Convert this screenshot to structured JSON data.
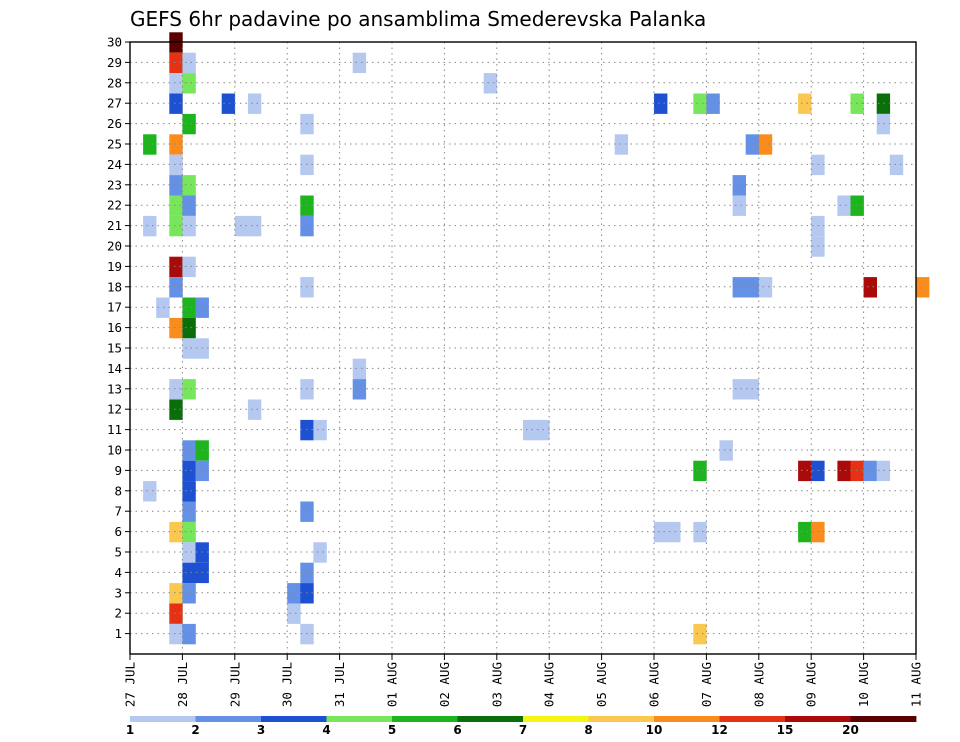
{
  "chart_data": {
    "type": "heatmap",
    "title": "GEFS 6hr padavine po ansamblima Smederevska Palanka",
    "xlabel": "",
    "ylabel": "",
    "x_ticks": [
      "27 JUL",
      "28 JUL",
      "29 JUL",
      "30 JUL",
      "31 JUL",
      "01 AUG",
      "02 AUG",
      "03 AUG",
      "04 AUG",
      "05 AUG",
      "06 AUG",
      "07 AUG",
      "08 AUG",
      "09 AUG",
      "10 AUG",
      "11 AUG"
    ],
    "x_range": [
      "27 JUL 00Z",
      "11 AUG 00Z"
    ],
    "x_step_hours": 6,
    "y_ticks": [
      "1",
      "2",
      "3",
      "4",
      "5",
      "6",
      "7",
      "8",
      "9",
      "10",
      "11",
      "12",
      "13",
      "14",
      "15",
      "16",
      "17",
      "18",
      "19",
      "20",
      "21",
      "22",
      "23",
      "24",
      "25",
      "26",
      "27",
      "28",
      "29",
      "30"
    ],
    "y_range": [
      1,
      30
    ],
    "grid": true,
    "grid_style": "dotted",
    "colorbar": {
      "labels": [
        "1",
        "2",
        "3",
        "4",
        "5",
        "6",
        "7",
        "8",
        "10",
        "12",
        "15",
        "20"
      ],
      "colors": [
        "#b4c8f0",
        "#6490e6",
        "#1e50d2",
        "#78e65a",
        "#1eb41e",
        "#0a6e0a",
        "#f5f514",
        "#fac850",
        "#fa8c1e",
        "#e63214",
        "#aa0a0a",
        "#5a0000"
      ]
    },
    "cells": [
      {
        "member": 30,
        "step": [
          0,
          18
        ],
        "value": 20
      },
      {
        "member": 29,
        "step": [
          4,
          6
        ],
        "value": 1
      },
      {
        "member": 29,
        "step": [
          0,
          18
        ],
        "value": 12
      },
      {
        "member": 29,
        "step": [
          0,
          24
        ],
        "value": 1
      },
      {
        "member": 28,
        "step": [
          6,
          18
        ],
        "value": 1
      },
      {
        "member": 28,
        "step": [
          0,
          18
        ],
        "value": 1
      },
      {
        "member": 28,
        "step": [
          0,
          24
        ],
        "value": 4
      },
      {
        "member": 27,
        "step": [
          0,
          18
        ],
        "value": 3
      },
      {
        "member": 27,
        "step": [
          1,
          18
        ],
        "value": 3
      },
      {
        "member": 27,
        "step": [
          2,
          6
        ],
        "value": 1
      },
      {
        "member": 27,
        "step": [
          10,
          0
        ],
        "value": 3
      },
      {
        "member": 27,
        "step": [
          10,
          18
        ],
        "value": 4
      },
      {
        "member": 27,
        "step": [
          11,
          0
        ],
        "value": 2
      },
      {
        "member": 27,
        "step": [
          12,
          18
        ],
        "value": 8
      },
      {
        "member": 27,
        "step": [
          13,
          18
        ],
        "value": 4
      },
      {
        "member": 27,
        "step": [
          14,
          6
        ],
        "value": 6
      },
      {
        "member": 26,
        "step": [
          3,
          6
        ],
        "value": 1
      },
      {
        "member": 26,
        "step": [
          0,
          24
        ],
        "value": 5
      },
      {
        "member": 26,
        "step": [
          14,
          6
        ],
        "value": 1
      },
      {
        "member": 25,
        "step": [
          0,
          6
        ],
        "value": 5
      },
      {
        "member": 25,
        "step": [
          0,
          18
        ],
        "value": 10
      },
      {
        "member": 25,
        "step": [
          9,
          6
        ],
        "value": 1
      },
      {
        "member": 25,
        "step": [
          11,
          18
        ],
        "value": 2
      },
      {
        "member": 25,
        "step": [
          12,
          0
        ],
        "value": 10
      },
      {
        "member": 24,
        "step": [
          3,
          6
        ],
        "value": 1
      },
      {
        "member": 24,
        "step": [
          0,
          18
        ],
        "value": 1
      },
      {
        "member": 24,
        "step": [
          13,
          0
        ],
        "value": 1
      },
      {
        "member": 24,
        "step": [
          14,
          12
        ],
        "value": 1
      },
      {
        "member": 23,
        "step": [
          0,
          18
        ],
        "value": 2
      },
      {
        "member": 23,
        "step": [
          0,
          24
        ],
        "value": 4
      },
      {
        "member": 23,
        "step": [
          11,
          12
        ],
        "value": 2
      },
      {
        "member": 22,
        "step": [
          3,
          6
        ],
        "value": 5
      },
      {
        "member": 22,
        "step": [
          0,
          18
        ],
        "value": 4
      },
      {
        "member": 22,
        "step": [
          0,
          24
        ],
        "value": 2
      },
      {
        "member": 22,
        "step": [
          11,
          12
        ],
        "value": 1
      },
      {
        "member": 22,
        "step": [
          13,
          12
        ],
        "value": 1
      },
      {
        "member": 22,
        "step": [
          13,
          18
        ],
        "value": 5
      },
      {
        "member": 21,
        "step": [
          0,
          6
        ],
        "value": 1
      },
      {
        "member": 21,
        "step": [
          2,
          0
        ],
        "value": 1
      },
      {
        "member": 21,
        "step": [
          2,
          6
        ],
        "value": 1
      },
      {
        "member": 21,
        "step": [
          3,
          6
        ],
        "value": 2
      },
      {
        "member": 21,
        "step": [
          0,
          18
        ],
        "value": 4
      },
      {
        "member": 21,
        "step": [
          0,
          24
        ],
        "value": 1
      },
      {
        "member": 21,
        "step": [
          13,
          0
        ],
        "value": 1
      },
      {
        "member": 20,
        "step": [
          13,
          0
        ],
        "value": 1
      },
      {
        "member": 19,
        "step": [
          0,
          18
        ],
        "value": 15
      },
      {
        "member": 19,
        "step": [
          0,
          24
        ],
        "value": 1
      },
      {
        "member": 18,
        "step": [
          3,
          6
        ],
        "value": 1
      },
      {
        "member": 18,
        "step": [
          0,
          18
        ],
        "value": 2
      },
      {
        "member": 18,
        "step": [
          11,
          12
        ],
        "value": 2
      },
      {
        "member": 18,
        "step": [
          11,
          18
        ],
        "value": 2
      },
      {
        "member": 18,
        "step": [
          12,
          0
        ],
        "value": 1
      },
      {
        "member": 18,
        "step": [
          14,
          0
        ],
        "value": 15
      },
      {
        "member": 18,
        "step": [
          15,
          0
        ],
        "value": 10
      },
      {
        "member": 17,
        "step": [
          0,
          12
        ],
        "value": 1
      },
      {
        "member": 17,
        "step": [
          0,
          24
        ],
        "value": 5
      },
      {
        "member": 17,
        "step": [
          1,
          6
        ],
        "value": 2
      },
      {
        "member": 16,
        "step": [
          0,
          18
        ],
        "value": 10
      },
      {
        "member": 16,
        "step": [
          0,
          24
        ],
        "value": 6
      },
      {
        "member": 15,
        "step": [
          0,
          24
        ],
        "value": 1
      },
      {
        "member": 15,
        "step": [
          1,
          6
        ],
        "value": 1
      },
      {
        "member": 14,
        "step": [
          4,
          6
        ],
        "value": 1
      },
      {
        "member": 13,
        "step": [
          4,
          6
        ],
        "value": 2
      },
      {
        "member": 13,
        "step": [
          3,
          6
        ],
        "value": 1
      },
      {
        "member": 13,
        "step": [
          0,
          18
        ],
        "value": 1
      },
      {
        "member": 13,
        "step": [
          0,
          24
        ],
        "value": 4
      },
      {
        "member": 13,
        "step": [
          11,
          12
        ],
        "value": 1
      },
      {
        "member": 13,
        "step": [
          11,
          18
        ],
        "value": 1
      },
      {
        "member": 12,
        "step": [
          2,
          6
        ],
        "value": 1
      },
      {
        "member": 12,
        "step": [
          0,
          18
        ],
        "value": 6
      },
      {
        "member": 11,
        "step": [
          3,
          6
        ],
        "value": 3
      },
      {
        "member": 11,
        "step": [
          3,
          12
        ],
        "value": 1
      },
      {
        "member": 11,
        "step": [
          7,
          12
        ],
        "value": 1
      },
      {
        "member": 11,
        "step": [
          7,
          18
        ],
        "value": 1
      },
      {
        "member": 10,
        "step": [
          0,
          24
        ],
        "value": 2
      },
      {
        "member": 10,
        "step": [
          1,
          6
        ],
        "value": 5
      },
      {
        "member": 10,
        "step": [
          11,
          6
        ],
        "value": 1
      },
      {
        "member": 9,
        "step": [
          0,
          24
        ],
        "value": 3
      },
      {
        "member": 9,
        "step": [
          1,
          6
        ],
        "value": 2
      },
      {
        "member": 9,
        "step": [
          10,
          18
        ],
        "value": 5
      },
      {
        "member": 9,
        "step": [
          12,
          18
        ],
        "value": 15
      },
      {
        "member": 9,
        "step": [
          13,
          0
        ],
        "value": 3
      },
      {
        "member": 9,
        "step": [
          13,
          12
        ],
        "value": 15
      },
      {
        "member": 9,
        "step": [
          13,
          18
        ],
        "value": 12
      },
      {
        "member": 9,
        "step": [
          14,
          0
        ],
        "value": 2
      },
      {
        "member": 9,
        "step": [
          14,
          6
        ],
        "value": 1
      },
      {
        "member": 8,
        "step": [
          0,
          6
        ],
        "value": 1
      },
      {
        "member": 8,
        "step": [
          0,
          24
        ],
        "value": 3
      },
      {
        "member": 7,
        "step": [
          3,
          6
        ],
        "value": 2
      },
      {
        "member": 7,
        "step": [
          0,
          24
        ],
        "value": 2
      },
      {
        "member": 6,
        "step": [
          0,
          18
        ],
        "value": 8
      },
      {
        "member": 6,
        "step": [
          0,
          24
        ],
        "value": 4
      },
      {
        "member": 6,
        "step": [
          10,
          0
        ],
        "value": 1
      },
      {
        "member": 6,
        "step": [
          10,
          6
        ],
        "value": 1
      },
      {
        "member": 6,
        "step": [
          10,
          18
        ],
        "value": 1
      },
      {
        "member": 6,
        "step": [
          12,
          18
        ],
        "value": 5
      },
      {
        "member": 6,
        "step": [
          13,
          0
        ],
        "value": 10
      },
      {
        "member": 5,
        "step": [
          3,
          12
        ],
        "value": 1
      },
      {
        "member": 5,
        "step": [
          0,
          24
        ],
        "value": 1
      },
      {
        "member": 5,
        "step": [
          1,
          6
        ],
        "value": 3
      },
      {
        "member": 4,
        "step": [
          3,
          6
        ],
        "value": 2
      },
      {
        "member": 4,
        "step": [
          0,
          24
        ],
        "value": 3
      },
      {
        "member": 4,
        "step": [
          1,
          6
        ],
        "value": 3
      },
      {
        "member": 3,
        "step": [
          3,
          0
        ],
        "value": 2
      },
      {
        "member": 3,
        "step": [
          3,
          6
        ],
        "value": 3
      },
      {
        "member": 3,
        "step": [
          0,
          18
        ],
        "value": 8
      },
      {
        "member": 3,
        "step": [
          0,
          24
        ],
        "value": 2
      },
      {
        "member": 2,
        "step": [
          3,
          0
        ],
        "value": 1
      },
      {
        "member": 2,
        "step": [
          0,
          18
        ],
        "value": 12
      },
      {
        "member": 1,
        "step": [
          3,
          6
        ],
        "value": 1
      },
      {
        "member": 1,
        "step": [
          0,
          18
        ],
        "value": 1
      },
      {
        "member": 1,
        "step": [
          0,
          24
        ],
        "value": 2
      },
      {
        "member": 1,
        "step": [
          10,
          18
        ],
        "value": 8
      }
    ]
  }
}
